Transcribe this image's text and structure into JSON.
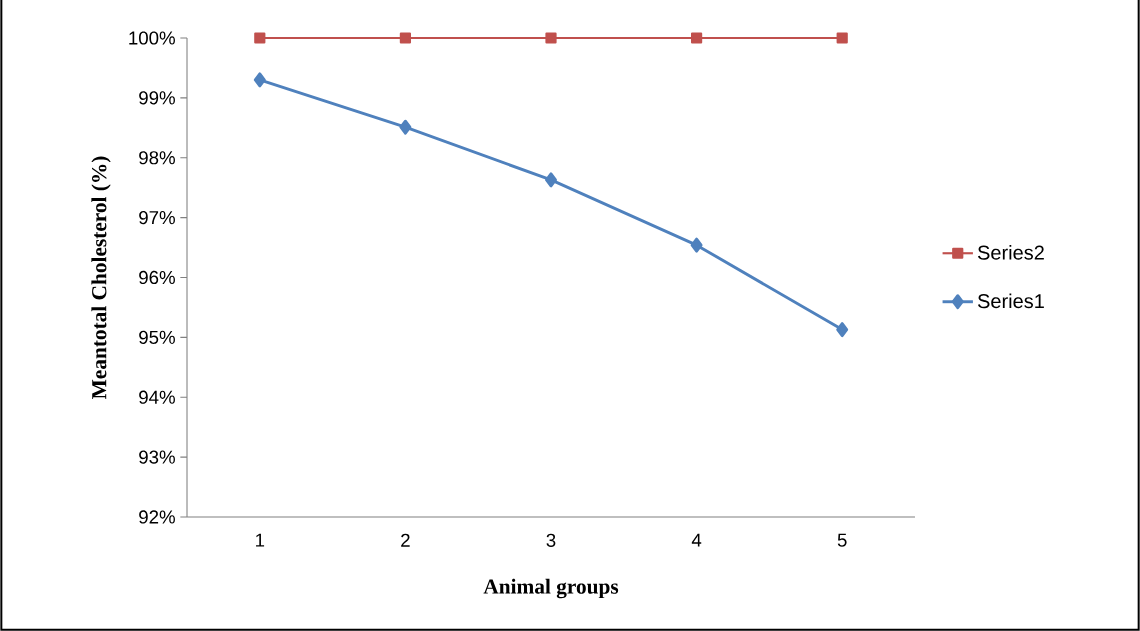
{
  "chart_data": {
    "type": "line",
    "xlabel": "Animal groups",
    "ylabel": "Meantotal Cholesterol (%)",
    "categories": [
      "1",
      "2",
      "3",
      "4",
      "5"
    ],
    "series": [
      {
        "name": "Series2",
        "color": "#c0504d",
        "marker": "square",
        "values": [
          100,
          100,
          100,
          100,
          100
        ]
      },
      {
        "name": "Series1",
        "color": "#4f81bd",
        "marker": "diamond",
        "values": [
          99.3,
          98.51,
          97.63,
          96.54,
          95.13
        ]
      }
    ],
    "ylim": [
      92,
      100
    ],
    "yticks": [
      {
        "value": 92,
        "label": "92%"
      },
      {
        "value": 93,
        "label": "93%"
      },
      {
        "value": 94,
        "label": "94%"
      },
      {
        "value": 95,
        "label": "95%"
      },
      {
        "value": 96,
        "label": "96%"
      },
      {
        "value": 97,
        "label": "97%"
      },
      {
        "value": 98,
        "label": "98%"
      },
      {
        "value": 99,
        "label": "99%"
      },
      {
        "value": 100,
        "label": "100%"
      }
    ],
    "grid": false,
    "legend": "right",
    "line_style": "solid"
  }
}
